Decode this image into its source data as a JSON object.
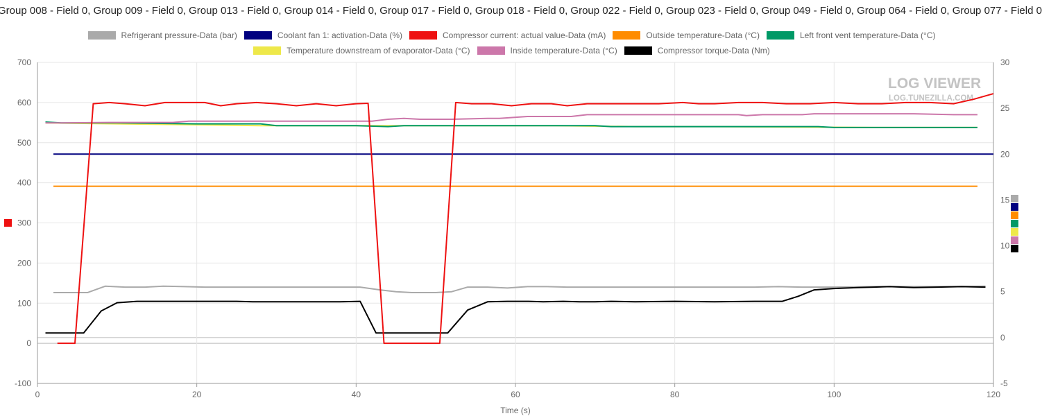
{
  "page": {
    "title": "Group 008 - Field 0, Group 009 - Field 0, Group 013 - Field 0, Group 014 - Field 0, Group 017 - Field 0, Group 018 - Field 0, Group 022 - Field 0, Group 023 - Field 0, Group 049 - Field 0, Group 064 - Field 0, Group 077 - Field 0"
  },
  "watermark": {
    "main": "LOG VIEWER",
    "sub": "LOG.TUNEZILLA.COM"
  },
  "left_axis_marker_color": "#ee1111",
  "right_axis_marker_colors": [
    "#aaaaaa",
    "#00007f",
    "#ff8c00",
    "#009966",
    "#eee84a",
    "#cc77aa",
    "#000000"
  ],
  "chart_data": {
    "type": "line",
    "title": "Group 008 - Field 0, Group 009 - Field 0, Group 013 - Field 0, Group 014 - Field 0, Group 017 - Field 0, Group 018 - Field 0, Group 022 - Field 0, Group 023 - Field 0, Group 049 - Field 0, Group 064 - Field 0, Group 077 - Field 0",
    "xlabel": "Time (s)",
    "ylabel": "",
    "xlim": [
      0,
      120
    ],
    "ylim": [
      -100,
      700
    ],
    "y2lim": [
      -5,
      30
    ],
    "x_ticks": [
      0,
      20,
      40,
      60,
      80,
      100,
      120
    ],
    "y_ticks": [
      -100,
      0,
      100,
      200,
      300,
      400,
      500,
      600,
      700
    ],
    "y2_ticks": [
      -5,
      0,
      5,
      10,
      15,
      20,
      25,
      30
    ],
    "grid": true,
    "legend_position": "top",
    "series": [
      {
        "name": "Refrigerant pressure-Data (bar)",
        "color": "#aaaaaa",
        "axis": "right",
        "x": [
          2,
          6.3,
          8.5,
          11,
          13.5,
          15.8,
          18.5,
          21,
          25,
          30,
          35,
          40.5,
          43,
          45,
          47,
          50,
          52,
          54,
          56.5,
          59,
          61.5,
          64,
          66.5,
          70,
          75,
          80,
          85,
          90,
          93,
          96,
          100,
          105,
          110,
          115,
          119
        ],
        "y": [
          4.9,
          4.9,
          5.6,
          5.5,
          5.5,
          5.6,
          5.55,
          5.5,
          5.5,
          5.5,
          5.5,
          5.5,
          5.2,
          5.0,
          4.9,
          4.9,
          5.0,
          5.5,
          5.5,
          5.4,
          5.55,
          5.55,
          5.5,
          5.5,
          5.5,
          5.5,
          5.5,
          5.5,
          5.55,
          5.5,
          5.5,
          5.55,
          5.55,
          5.55,
          5.6
        ]
      },
      {
        "name": "Coolant fan 1: activation-Data (%)",
        "color": "#00007f",
        "axis": "right",
        "x": [
          2,
          120
        ],
        "y": [
          20.0,
          20.0
        ]
      },
      {
        "name": "Compressor current: actual value-Data (mA)",
        "color": "#ee1111",
        "axis": "left",
        "x": [
          2.5,
          4.7,
          7,
          9,
          11,
          13.5,
          16,
          18.5,
          21,
          23,
          25,
          27.5,
          30,
          32.5,
          35,
          37.5,
          40,
          41.5,
          43.5,
          50.5,
          52.5,
          54.5,
          57,
          59.5,
          62,
          64.5,
          66.5,
          69,
          72,
          75,
          78,
          81,
          83,
          85,
          88,
          91,
          94,
          97,
          100,
          103,
          106,
          109,
          112,
          115,
          117.5,
          120
        ],
        "y": [
          0,
          0,
          597,
          600,
          597,
          592,
          600,
          600,
          600,
          592,
          597,
          600,
          597,
          592,
          597,
          592,
          597,
          598,
          0,
          0,
          600,
          597,
          597,
          592,
          597,
          597,
          592,
          597,
          597,
          597,
          597,
          600,
          597,
          597,
          600,
          600,
          597,
          597,
          600,
          597,
          597,
          600,
          600,
          597,
          608,
          622
        ]
      },
      {
        "name": "Outside temperature-Data (°C)",
        "color": "#ff8c00",
        "axis": "right",
        "x": [
          2,
          118
        ],
        "y": [
          16.5,
          16.5
        ]
      },
      {
        "name": "Left front vent temperature-Data (°C)",
        "color": "#009966",
        "axis": "right",
        "x": [
          1,
          3,
          10,
          20,
          28,
          30,
          35,
          40,
          44,
          46,
          50,
          60,
          70,
          72,
          80,
          90,
          98,
          100,
          110,
          118
        ],
        "y": [
          23.5,
          23.4,
          23.4,
          23.3,
          23.3,
          23.1,
          23.1,
          23.1,
          23.0,
          23.1,
          23.1,
          23.1,
          23.1,
          23.0,
          23.0,
          23.0,
          23.0,
          22.9,
          22.9,
          22.9
        ]
      },
      {
        "name": "Temperature downstream of evaporator-Data (°C)",
        "color": "#eee84a",
        "axis": "right",
        "x": [
          1,
          10,
          20,
          28,
          35,
          45,
          55,
          65,
          75,
          85,
          95,
          105,
          118
        ],
        "y": [
          23.4,
          23.3,
          23.2,
          23.1,
          23.1,
          23.1,
          23.1,
          23.1,
          23.0,
          23.0,
          22.95,
          22.9,
          22.9
        ]
      },
      {
        "name": "Inside temperature-Data (°C)",
        "color": "#cc77aa",
        "axis": "right",
        "x": [
          1,
          3,
          9,
          17,
          19,
          26,
          34,
          42,
          44,
          46,
          48,
          52,
          56.5,
          58,
          61.5,
          67,
          69,
          80,
          88,
          89,
          91,
          96,
          97.5,
          100,
          110,
          115,
          118
        ],
        "y": [
          23.4,
          23.4,
          23.45,
          23.45,
          23.6,
          23.6,
          23.6,
          23.6,
          23.8,
          23.9,
          23.8,
          23.8,
          23.9,
          23.9,
          24.1,
          24.1,
          24.3,
          24.3,
          24.3,
          24.2,
          24.3,
          24.3,
          24.4,
          24.4,
          24.4,
          24.3,
          24.3
        ]
      },
      {
        "name": "Compressor torque-Data (Nm)",
        "color": "#000000",
        "axis": "right",
        "x": [
          1,
          5.8,
          8,
          10,
          12.5,
          15,
          20,
          25,
          27,
          30,
          35,
          38,
          40.5,
          42.5,
          45,
          51.5,
          54,
          56.5,
          59,
          61.5,
          63.5,
          66,
          68,
          70,
          72,
          75,
          80,
          85,
          90,
          93.5,
          95.5,
          97.5,
          100,
          103,
          105,
          107,
          110,
          113,
          116,
          119
        ],
        "y": [
          0.5,
          0.5,
          2.9,
          3.8,
          3.95,
          3.95,
          3.95,
          3.95,
          3.9,
          3.9,
          3.9,
          3.9,
          3.95,
          0.5,
          0.5,
          0.5,
          3.0,
          3.9,
          3.95,
          3.95,
          3.9,
          3.95,
          3.9,
          3.9,
          3.95,
          3.9,
          3.95,
          3.9,
          3.95,
          3.95,
          4.5,
          5.2,
          5.35,
          5.45,
          5.5,
          5.55,
          5.45,
          5.5,
          5.55,
          5.5
        ]
      }
    ]
  }
}
